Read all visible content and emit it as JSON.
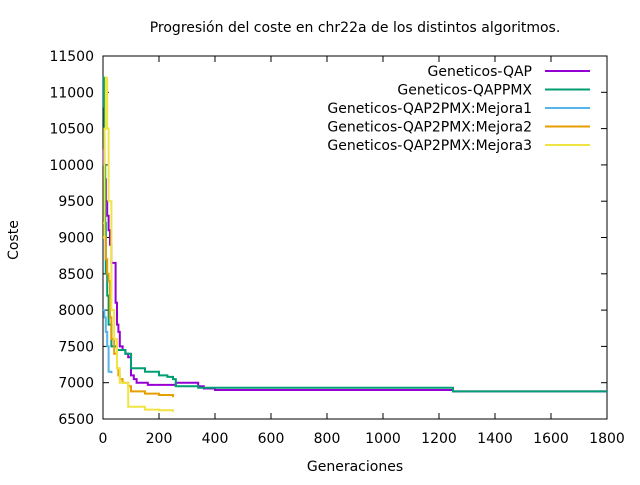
{
  "chart_data": {
    "type": "line",
    "title": "Progresión del coste en chr22a de los distintos algoritmos.",
    "xlabel": "Generaciones",
    "ylabel": "Coste",
    "xlim": [
      0,
      1800
    ],
    "ylim": [
      6500,
      11500
    ],
    "x_ticks": [
      0,
      200,
      400,
      600,
      800,
      1000,
      1200,
      1400,
      1600,
      1800
    ],
    "y_ticks": [
      6500,
      7000,
      7500,
      8000,
      8500,
      9000,
      9500,
      10000,
      10500,
      11000,
      11500
    ],
    "grid": false,
    "legend_position": "top-right",
    "series": [
      {
        "name": "Geneticos-QAP",
        "color": "#9400d3",
        "points": [
          [
            0,
            10000
          ],
          [
            2,
            10200
          ],
          [
            5,
            9800
          ],
          [
            10,
            9500
          ],
          [
            15,
            9300
          ],
          [
            20,
            9100
          ],
          [
            25,
            8900
          ],
          [
            30,
            8650
          ],
          [
            40,
            8650
          ],
          [
            45,
            8100
          ],
          [
            50,
            7800
          ],
          [
            55,
            7700
          ],
          [
            60,
            7500
          ],
          [
            70,
            7450
          ],
          [
            80,
            7400
          ],
          [
            90,
            7350
          ],
          [
            100,
            7100
          ],
          [
            110,
            7050
          ],
          [
            120,
            7000
          ],
          [
            140,
            7000
          ],
          [
            160,
            6970
          ],
          [
            200,
            6970
          ],
          [
            250,
            6970
          ],
          [
            260,
            7000
          ],
          [
            330,
            7000
          ],
          [
            340,
            6950
          ],
          [
            360,
            6920
          ],
          [
            400,
            6900
          ],
          [
            1240,
            6900
          ],
          [
            1250,
            6880
          ],
          [
            1800,
            6880
          ]
        ]
      },
      {
        "name": "Geneticos-QAPPMX",
        "color": "#009e73",
        "points": [
          [
            0,
            10800
          ],
          [
            3,
            11200
          ],
          [
            5,
            10000
          ],
          [
            8,
            9200
          ],
          [
            10,
            8500
          ],
          [
            15,
            8200
          ],
          [
            20,
            7800
          ],
          [
            30,
            7500
          ],
          [
            50,
            7450
          ],
          [
            70,
            7450
          ],
          [
            80,
            7400
          ],
          [
            100,
            7200
          ],
          [
            150,
            7150
          ],
          [
            180,
            7150
          ],
          [
            200,
            7100
          ],
          [
            230,
            7080
          ],
          [
            250,
            7050
          ],
          [
            260,
            6950
          ],
          [
            330,
            6950
          ],
          [
            340,
            6930
          ],
          [
            400,
            6930
          ],
          [
            1240,
            6930
          ],
          [
            1250,
            6880
          ],
          [
            1800,
            6880
          ]
        ]
      },
      {
        "name": "Geneticos-QAP2PMX:Mejora1",
        "color": "#56b4e9",
        "points": [
          [
            0,
            8000
          ],
          [
            5,
            7900
          ],
          [
            10,
            7700
          ],
          [
            15,
            7500
          ],
          [
            20,
            7150
          ],
          [
            30,
            7130
          ]
        ]
      },
      {
        "name": "Geneticos-QAP2PMX:Mejora2",
        "color": "#e69f00",
        "points": [
          [
            0,
            9200
          ],
          [
            5,
            9000
          ],
          [
            10,
            8700
          ],
          [
            15,
            8500
          ],
          [
            20,
            8400
          ],
          [
            25,
            7900
          ],
          [
            30,
            7600
          ],
          [
            40,
            7400
          ],
          [
            50,
            7200
          ],
          [
            55,
            7100
          ],
          [
            60,
            7050
          ],
          [
            70,
            7000
          ],
          [
            90,
            6950
          ],
          [
            100,
            6880
          ],
          [
            150,
            6850
          ],
          [
            200,
            6830
          ],
          [
            250,
            6800
          ]
        ]
      },
      {
        "name": "Geneticos-QAP2PMX:Mejora3",
        "color": "#f0e442",
        "points": [
          [
            0,
            9000
          ],
          [
            5,
            10500
          ],
          [
            10,
            11200
          ],
          [
            15,
            10500
          ],
          [
            20,
            9500
          ],
          [
            30,
            8000
          ],
          [
            40,
            7600
          ],
          [
            50,
            7200
          ],
          [
            60,
            7000
          ],
          [
            80,
            7000
          ],
          [
            90,
            6670
          ],
          [
            150,
            6630
          ],
          [
            200,
            6620
          ],
          [
            250,
            6600
          ]
        ]
      }
    ]
  }
}
